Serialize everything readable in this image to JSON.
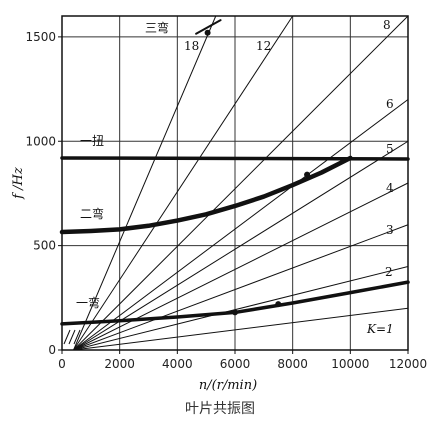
{
  "caption": "叶片共振图",
  "chart_data": {
    "type": "line",
    "xlabel": "n/(r/min)",
    "ylabel": "f /Hz",
    "xlim": [
      0,
      12000
    ],
    "ylim": [
      0,
      1600
    ],
    "xticks": [
      0,
      2000,
      4000,
      6000,
      8000,
      10000,
      12000
    ],
    "yticks": [
      0,
      500,
      1000,
      1500
    ],
    "grid": true,
    "harmonic_lines": [
      {
        "label": "K=1",
        "k": 1
      },
      {
        "label": "2",
        "k": 2
      },
      {
        "label": "3",
        "k": 3
      },
      {
        "label": "4",
        "k": 4
      },
      {
        "label": "5",
        "k": 5
      },
      {
        "label": "6",
        "k": 6
      },
      {
        "label": "8",
        "k": 8
      },
      {
        "label": "12",
        "k": 12
      },
      {
        "label": "18",
        "k": 18
      }
    ],
    "mode_curves": [
      {
        "name": "一弯",
        "x": [
          0,
          2000,
          4000,
          6000,
          8000,
          10000,
          12000
        ],
        "y": [
          125,
          140,
          158,
          180,
          225,
          275,
          325
        ]
      },
      {
        "name": "二弯",
        "x": [
          0,
          1000,
          2000,
          3000,
          4000,
          5000,
          6000,
          7000,
          8000,
          9000,
          10000
        ],
        "y": [
          565,
          570,
          578,
          595,
          620,
          650,
          690,
          735,
          790,
          850,
          920
        ]
      },
      {
        "name": "一扭",
        "x": [
          0,
          12000
        ],
        "y": [
          920,
          915
        ]
      },
      {
        "name": "三弯",
        "x": [
          4650,
          5500
        ],
        "y": [
          1515,
          1580
        ]
      }
    ],
    "resonance_points": [
      {
        "x": 6000,
        "y": 180
      },
      {
        "x": 7500,
        "y": 220
      },
      {
        "x": 8500,
        "y": 840
      },
      {
        "x": 5050,
        "y": 1520
      }
    ]
  }
}
